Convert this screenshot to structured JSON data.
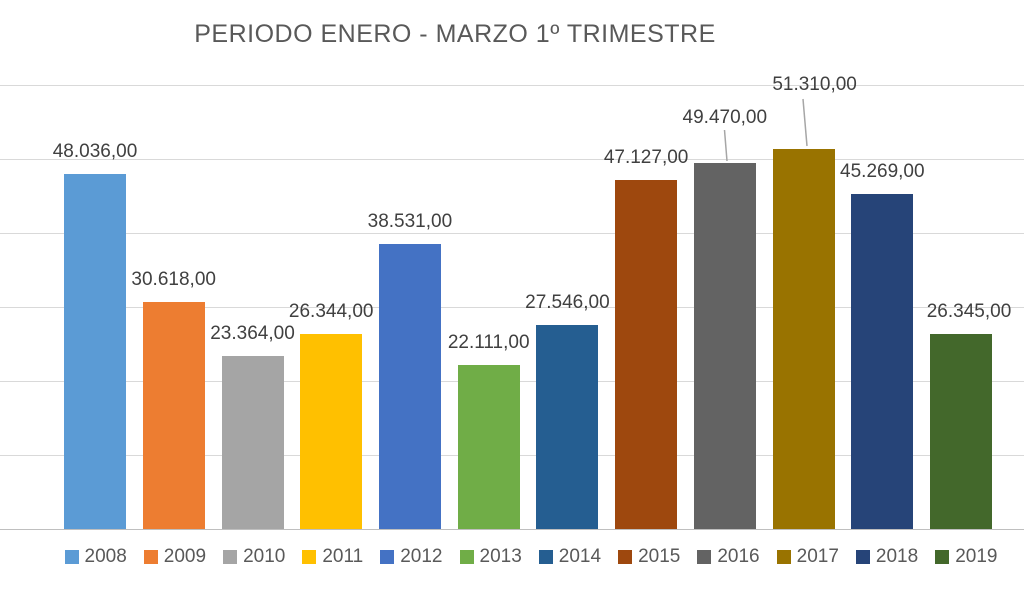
{
  "chart_data": {
    "type": "bar",
    "title": "PERIODO ENERO - MARZO 1º TRIMESTRE",
    "categories": [
      "2008",
      "2009",
      "2010",
      "2011",
      "2012",
      "2013",
      "2014",
      "2015",
      "2016",
      "2017",
      "2018",
      "2019"
    ],
    "values": [
      48036,
      30618,
      23364,
      26344,
      38531,
      22111,
      27546,
      47127,
      49470,
      51310,
      45269,
      26345
    ],
    "value_labels": [
      "48.036,00",
      "30.618,00",
      "23.364,00",
      "26.344,00",
      "38.531,00",
      "22.111,00",
      "27.546,00",
      "47.127,00",
      "49.470,00",
      "51.310,00",
      "45.269,00",
      "26.345,00"
    ],
    "colors": [
      "#5B9BD5",
      "#ED7D31",
      "#A5A5A5",
      "#FFC000",
      "#4472C4",
      "#70AD47",
      "#255E91",
      "#9E480E",
      "#636363",
      "#997300",
      "#264478",
      "#43682B"
    ],
    "xlabel": "",
    "ylabel": "",
    "ylim": [
      0,
      60000
    ],
    "gridline_step": 10000,
    "grid": true,
    "y_axis_tick_labels_visible": false,
    "legend_position": "bottom",
    "legend_entries": [
      "2008",
      "2009",
      "2010",
      "2011",
      "2012",
      "2013",
      "2014",
      "2015",
      "2016",
      "2017",
      "2018",
      "2019"
    ],
    "labels_with_leader_lines": [
      "2016",
      "2017"
    ],
    "title_color": "#595959",
    "data_label_color": "#404040",
    "legend_text_color": "#595959"
  }
}
